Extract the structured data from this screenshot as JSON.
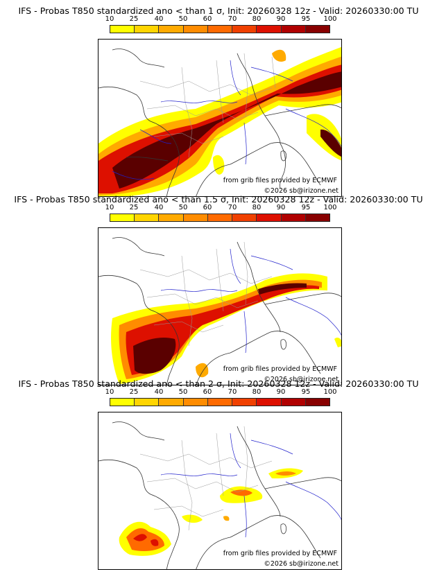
{
  "panels": [
    {
      "title": "IFS - Probas T850  standardized ano < than 1 σ, Init: 20260328 12z - Valid: 20260330:00 TU",
      "source_credit": "from grib files provided by ECMWF",
      "copyright": "©2026 sb@irizone.net"
    },
    {
      "title": "IFS - Probas T850  standardized ano < than 1.5 σ, Init: 20260328 12z - Valid: 20260330:00 TU",
      "source_credit": "from grib files provided by ECMWF",
      "copyright": "©2026 sb@irizone.net"
    },
    {
      "title": "IFS - Probas T850  standardized ano < than 2 σ, Init: 20260328 12z - Valid: 20260330:00 TU",
      "source_credit": "from grib files provided by ECMWF",
      "copyright": "©2026 sb@irizone.net"
    }
  ],
  "colorbar": {
    "ticks": [
      "10",
      "25",
      "40",
      "50",
      "60",
      "70",
      "80",
      "90",
      "95",
      "100"
    ],
    "colors": [
      "#ffff00",
      "#ffd500",
      "#ffaa00",
      "#ff8c00",
      "#ff6a00",
      "#f04000",
      "#dd1000",
      "#b00000",
      "#880000",
      "#5a0000"
    ]
  },
  "colors": {
    "land_border": "#333333",
    "regions": "#999999",
    "rivers": "#2020cc"
  }
}
